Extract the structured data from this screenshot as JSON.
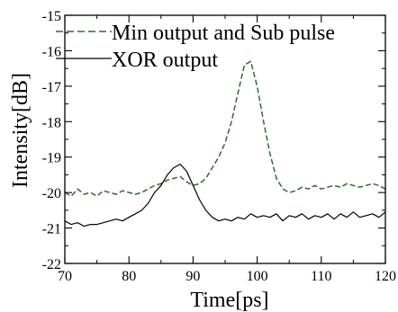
{
  "chart_data": {
    "type": "line",
    "xlabel": "Time[ps]",
    "ylabel": "Intensity[dB]",
    "xlim": [
      70,
      120
    ],
    "ylim": [
      -22,
      -15
    ],
    "xticks": [
      "70",
      "80",
      "90",
      "100",
      "110",
      "120"
    ],
    "yticks": [
      "-22",
      "-21",
      "-20",
      "-19",
      "-18",
      "-17",
      "-16",
      "-15"
    ],
    "grid": false,
    "legend_position": "top-right",
    "series": [
      {
        "name": "Min output and Sub pulse",
        "style": "dashed",
        "color": "#2e6b2e",
        "x": [
          70,
          71,
          72,
          73,
          74,
          75,
          76,
          77,
          78,
          79,
          80,
          81,
          82,
          83,
          84,
          85,
          86,
          87,
          88,
          89,
          90,
          91,
          92,
          93,
          94,
          95,
          96,
          97,
          98,
          99,
          100,
          101,
          102,
          103,
          104,
          105,
          106,
          107,
          108,
          109,
          110,
          111,
          112,
          113,
          114,
          115,
          116,
          117,
          118,
          119,
          120
        ],
        "y": [
          -20.0,
          -20.1,
          -19.9,
          -20.05,
          -20.0,
          -20.1,
          -19.95,
          -20.0,
          -20.05,
          -19.95,
          -20.0,
          -20.05,
          -20.0,
          -19.9,
          -19.8,
          -19.75,
          -19.65,
          -19.6,
          -19.55,
          -19.7,
          -19.8,
          -19.75,
          -19.6,
          -19.3,
          -19.0,
          -18.6,
          -18.0,
          -17.2,
          -16.4,
          -16.3,
          -17.0,
          -18.0,
          -18.9,
          -19.6,
          -19.9,
          -20.0,
          -19.95,
          -19.85,
          -19.9,
          -19.8,
          -19.9,
          -19.85,
          -19.8,
          -19.85,
          -19.75,
          -19.8,
          -19.85,
          -19.8,
          -19.75,
          -19.8,
          -19.9
        ]
      },
      {
        "name": "XOR output",
        "style": "solid",
        "color": "#000000",
        "x": [
          70,
          71,
          72,
          73,
          74,
          75,
          76,
          77,
          78,
          79,
          80,
          81,
          82,
          83,
          84,
          85,
          86,
          87,
          88,
          89,
          90,
          91,
          92,
          93,
          94,
          95,
          96,
          97,
          98,
          99,
          100,
          101,
          102,
          103,
          104,
          105,
          106,
          107,
          108,
          109,
          110,
          111,
          112,
          113,
          114,
          115,
          116,
          117,
          118,
          119,
          120
        ],
        "y": [
          -20.8,
          -20.9,
          -20.85,
          -20.95,
          -20.9,
          -20.9,
          -20.85,
          -20.8,
          -20.75,
          -20.8,
          -20.7,
          -20.6,
          -20.5,
          -20.3,
          -20.0,
          -19.8,
          -19.5,
          -19.3,
          -19.2,
          -19.4,
          -19.8,
          -20.2,
          -20.5,
          -20.7,
          -20.8,
          -20.75,
          -20.8,
          -20.7,
          -20.75,
          -20.6,
          -20.7,
          -20.65,
          -20.7,
          -20.6,
          -20.8,
          -20.65,
          -20.7,
          -20.6,
          -20.75,
          -20.65,
          -20.7,
          -20.6,
          -20.75,
          -20.6,
          -20.7,
          -20.55,
          -20.7,
          -20.65,
          -20.6,
          -20.7,
          -20.55
        ]
      }
    ]
  }
}
